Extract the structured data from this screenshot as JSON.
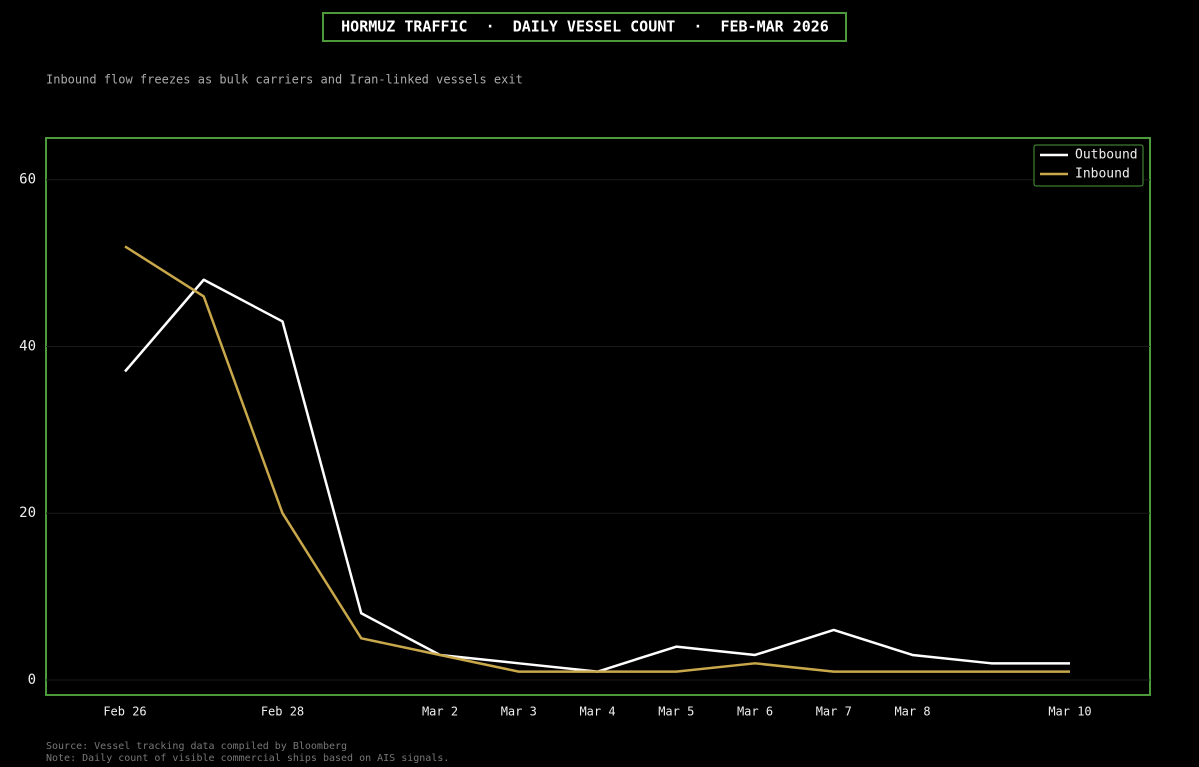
{
  "chart_data": {
    "type": "line",
    "title": "HORMUZ TRAFFIC  ·  DAILY VESSEL COUNT  ·  FEB-MAR 2026",
    "subtitle": "Inbound flow freezes as bulk carriers and Iran-linked vessels exit",
    "categories": [
      "Feb 26",
      null,
      "Feb 28",
      null,
      "Mar 2",
      "Mar 3",
      "Mar 4",
      "Mar 5",
      "Mar 6",
      "Mar 7",
      "Mar 8",
      null,
      "Mar 10"
    ],
    "series": [
      {
        "name": "Outbound",
        "color": "#ffffff",
        "values": [
          37,
          48,
          43,
          8,
          3,
          2,
          1,
          4,
          3,
          6,
          3,
          2,
          2
        ]
      },
      {
        "name": "Inbound",
        "color": "#c8a84b",
        "values": [
          52,
          46,
          20,
          5,
          3,
          1,
          1,
          1,
          2,
          1,
          1,
          1,
          1
        ]
      }
    ],
    "ylim": [
      -1.8,
      65
    ],
    "yticks": [
      0,
      20,
      40,
      60
    ],
    "grid": true,
    "legend": "upper right",
    "notes": [
      "Source: Vessel tracking data compiled by Bloomberg",
      "Note: Daily count of visible commercial ships based on AIS signals."
    ]
  }
}
